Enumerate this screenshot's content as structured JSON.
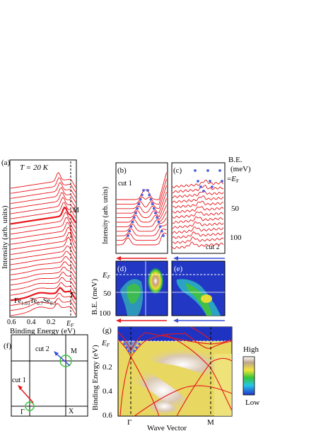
{
  "panel_a": {
    "label": "(a)",
    "temperature": "T = 20 K",
    "ylabel": "Intensity (arb. units)",
    "xlabel": "Binding Energy (eV)",
    "xticks": [
      "0.6",
      "0.4",
      "0.2",
      "E_F"
    ],
    "marker_M": "M",
    "marker_Gamma": "Γ",
    "formula": "Fe1.03Te0.7Se0.3",
    "curve_color": "#e8161b"
  },
  "panel_b": {
    "label": "(b)",
    "cut_label": "cut 1",
    "ylabel": "Intensity (arb. units)"
  },
  "panel_c": {
    "label": "(c)",
    "cut_label": "cut 2"
  },
  "be_legend": {
    "line1": "B.E.",
    "line2": "(meV)",
    "line3": "=E_F",
    "v50": "50",
    "v100": "100"
  },
  "panel_d": {
    "label": "(d)",
    "ylabel": "B.E. (meV)",
    "yticks": [
      "E_F",
      "50",
      "100"
    ]
  },
  "panel_e": {
    "label": "(e)"
  },
  "panel_f": {
    "label": "(f)",
    "cut1": "cut 1",
    "cut2": "cut 2",
    "M": "M",
    "Gamma": "Γ",
    "X": "X"
  },
  "panel_g": {
    "label": "(g)",
    "ylabel": "Binding Energy (eV)",
    "xlabel": "Wave Vector",
    "yticks": [
      "E_F",
      "0.2",
      "0.4",
      "0.6"
    ],
    "xticks": [
      "Γ",
      "M"
    ],
    "colorbar_high": "High",
    "colorbar_low": "Low"
  },
  "colors": {
    "curves": "#e8161b",
    "dots": "#4b5fe0",
    "arrow_blue": "#3a4fd6",
    "arrow_red": "#e8161b",
    "circle": "#39c63a"
  }
}
